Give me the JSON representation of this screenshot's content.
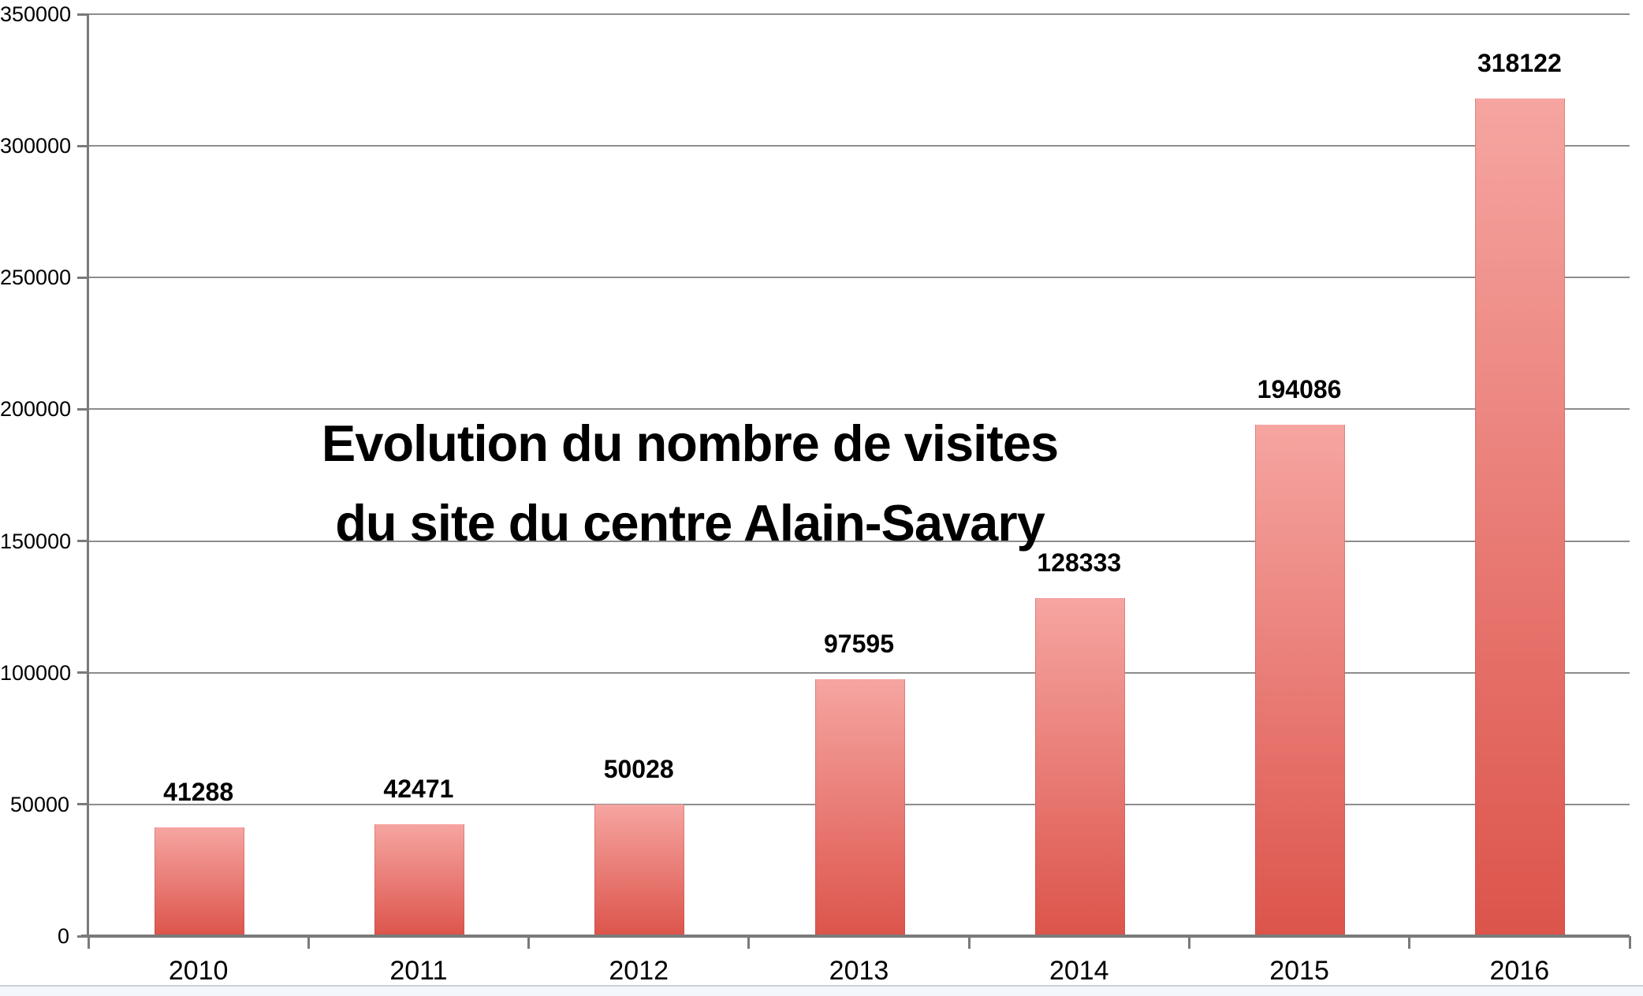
{
  "chart_data": {
    "type": "bar",
    "title_line1": "Evolution du nombre de visites",
    "title_line2": "du site du centre Alain-Savary",
    "categories": [
      "2010",
      "2011",
      "2012",
      "2013",
      "2014",
      "2015",
      "2016"
    ],
    "values": [
      41288,
      42471,
      50028,
      97595,
      128333,
      194086,
      318122
    ],
    "value_labels": [
      "41288",
      "42471",
      "50028",
      "97595",
      "128333",
      "194086",
      "318122"
    ],
    "xlabel": "",
    "ylabel": "",
    "ylim": [
      0,
      350000
    ],
    "ytick_step": 50000,
    "ytick_labels": [
      "0",
      "50000",
      "100000",
      "150000",
      "200000",
      "250000",
      "300000",
      "350000"
    ],
    "grid": true,
    "legend": "none",
    "colors": {
      "bar_gradient_top": "#f6a5a1",
      "bar_gradient_bottom": "#dc544b",
      "grid_line": "#8d8d8d",
      "axis_line": "#7a7a7a",
      "text": "#000000",
      "background": "#ffffff",
      "bottom_strip": "#f3f6fa",
      "bottom_strip_border": "#ccd1d9"
    }
  }
}
